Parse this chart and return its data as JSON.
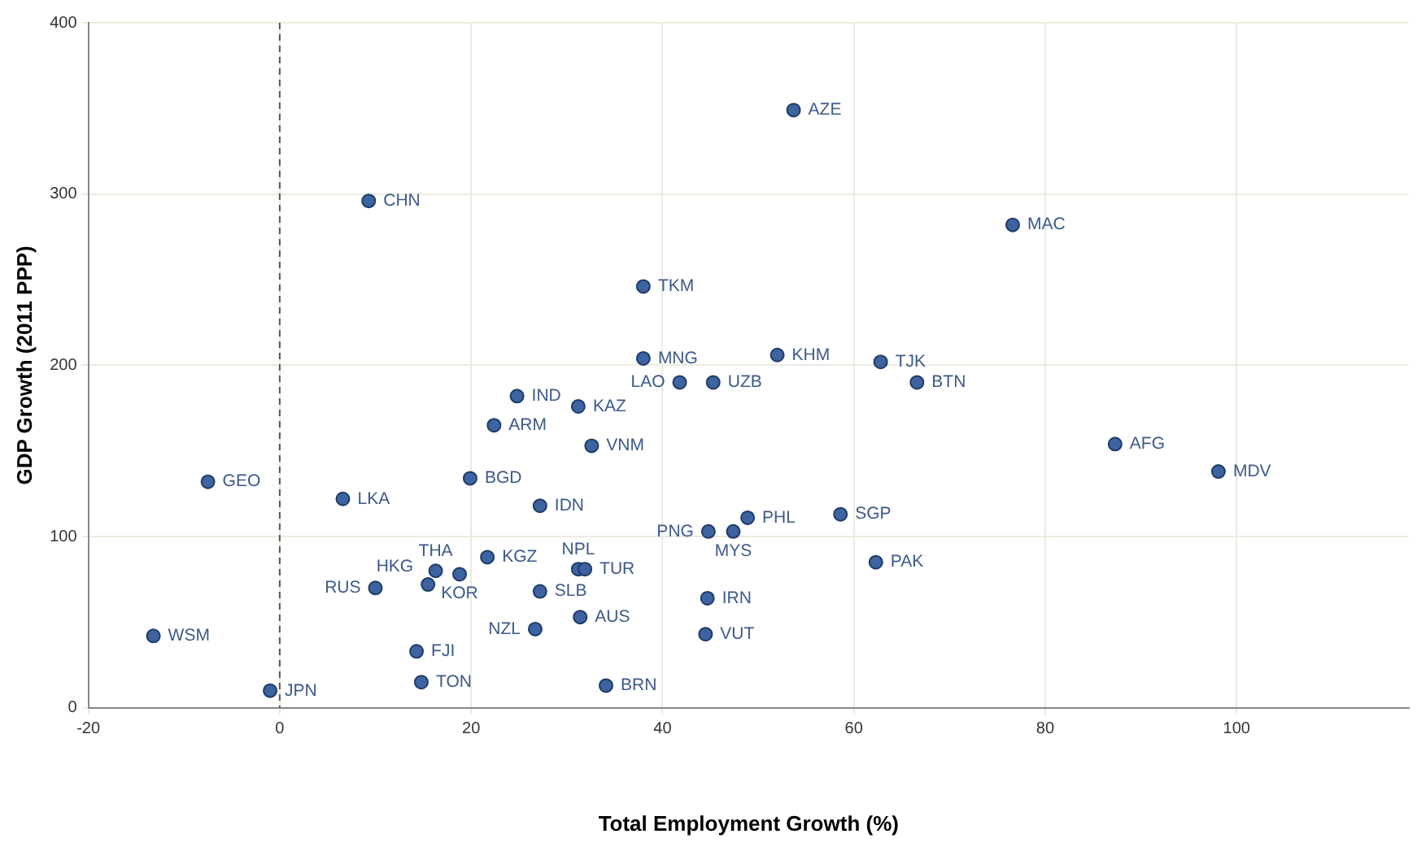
{
  "chart_data": {
    "type": "scatter",
    "xlabel": "Total Employment Growth (%)",
    "ylabel": "GDP Growth (2011 PPP)",
    "x": [
      53.7,
      9.3,
      76.6,
      38.0,
      38.0,
      52.0,
      62.8,
      66.6,
      41.8,
      45.3,
      24.8,
      31.2,
      22.4,
      32.6,
      87.3,
      98.1,
      19.9,
      -7.5,
      6.6,
      27.2,
      58.6,
      48.9,
      44.8,
      47.4,
      62.3,
      21.7,
      16.3,
      18.8,
      15.5,
      31.2,
      31.9,
      10.0,
      27.2,
      44.7,
      31.4,
      26.7,
      -13.2,
      44.5,
      14.3,
      14.8,
      34.1,
      -1.0
    ],
    "series": [
      {
        "color": "#3d64a0",
        "values": [
          349,
          296,
          282,
          246,
          204,
          206,
          202,
          190,
          190,
          190,
          182,
          176,
          165,
          153,
          154,
          138,
          134,
          132,
          122,
          118,
          113,
          111,
          103,
          103,
          85,
          88,
          80,
          78,
          72,
          81,
          81,
          70,
          68,
          64,
          53,
          46,
          42,
          43,
          33,
          15,
          13,
          10
        ]
      }
    ],
    "annotations": [
      {
        "text": "AZE",
        "x": 53.7,
        "y": 349
      },
      {
        "text": "CHN",
        "x": 9.3,
        "y": 296
      },
      {
        "text": "MAC",
        "x": 76.6,
        "y": 282
      },
      {
        "text": "TKM",
        "x": 38.0,
        "y": 246
      },
      {
        "text": "MNG",
        "x": 38.0,
        "y": 204
      },
      {
        "text": "KHM",
        "x": 52.0,
        "y": 206
      },
      {
        "text": "TJK",
        "x": 62.8,
        "y": 202
      },
      {
        "text": "BTN",
        "x": 66.6,
        "y": 190
      },
      {
        "text": "LAO",
        "x": 41.8,
        "y": 190
      },
      {
        "text": "UZB",
        "x": 45.3,
        "y": 190
      },
      {
        "text": "IND",
        "x": 24.8,
        "y": 182
      },
      {
        "text": "KAZ",
        "x": 31.2,
        "y": 176
      },
      {
        "text": "ARM",
        "x": 22.4,
        "y": 165
      },
      {
        "text": "VNM",
        "x": 32.6,
        "y": 153
      },
      {
        "text": "AFG",
        "x": 87.3,
        "y": 154
      },
      {
        "text": "MDV",
        "x": 98.1,
        "y": 138
      },
      {
        "text": "BGD",
        "x": 19.9,
        "y": 134
      },
      {
        "text": "GEO",
        "x": -7.5,
        "y": 132
      },
      {
        "text": "LKA",
        "x": 6.6,
        "y": 122
      },
      {
        "text": "IDN",
        "x": 27.2,
        "y": 118
      },
      {
        "text": "SGP",
        "x": 58.6,
        "y": 113
      },
      {
        "text": "PHL",
        "x": 48.9,
        "y": 111
      },
      {
        "text": "PNG",
        "x": 44.8,
        "y": 103
      },
      {
        "text": "MYS",
        "x": 47.4,
        "y": 103
      },
      {
        "text": "PAK",
        "x": 62.3,
        "y": 85
      },
      {
        "text": "KGZ",
        "x": 21.7,
        "y": 88
      },
      {
        "text": "THA",
        "x": 16.3,
        "y": 80
      },
      {
        "text": "KOR",
        "x": 18.8,
        "y": 78
      },
      {
        "text": "HKG",
        "x": 15.5,
        "y": 72
      },
      {
        "text": "NPL",
        "x": 31.2,
        "y": 81
      },
      {
        "text": "TUR",
        "x": 31.9,
        "y": 81
      },
      {
        "text": "RUS",
        "x": 10.0,
        "y": 70
      },
      {
        "text": "SLB",
        "x": 27.2,
        "y": 68
      },
      {
        "text": "IRN",
        "x": 44.7,
        "y": 64
      },
      {
        "text": "AUS",
        "x": 31.4,
        "y": 53
      },
      {
        "text": "NZL",
        "x": 26.7,
        "y": 46
      },
      {
        "text": "WSM",
        "x": -13.2,
        "y": 42
      },
      {
        "text": "VUT",
        "x": 44.5,
        "y": 43
      },
      {
        "text": "FJI",
        "x": 14.3,
        "y": 33
      },
      {
        "text": "TON",
        "x": 14.8,
        "y": 15
      },
      {
        "text": "BRN",
        "x": 34.1,
        "y": 13
      },
      {
        "text": "JPN",
        "x": -1.0,
        "y": 10
      }
    ],
    "xlim": [
      -20,
      118
    ],
    "xticks": [
      -20,
      0,
      20,
      40,
      60,
      80,
      100
    ],
    "ylim": [
      0,
      400
    ],
    "yticks": [
      0,
      100,
      200,
      300,
      400
    ],
    "ref_lines": [
      {
        "axis": "x",
        "value": 0,
        "color": "#555555",
        "line_style": "dashed"
      }
    ],
    "grid": true,
    "legend": false,
    "marker": "circle"
  }
}
